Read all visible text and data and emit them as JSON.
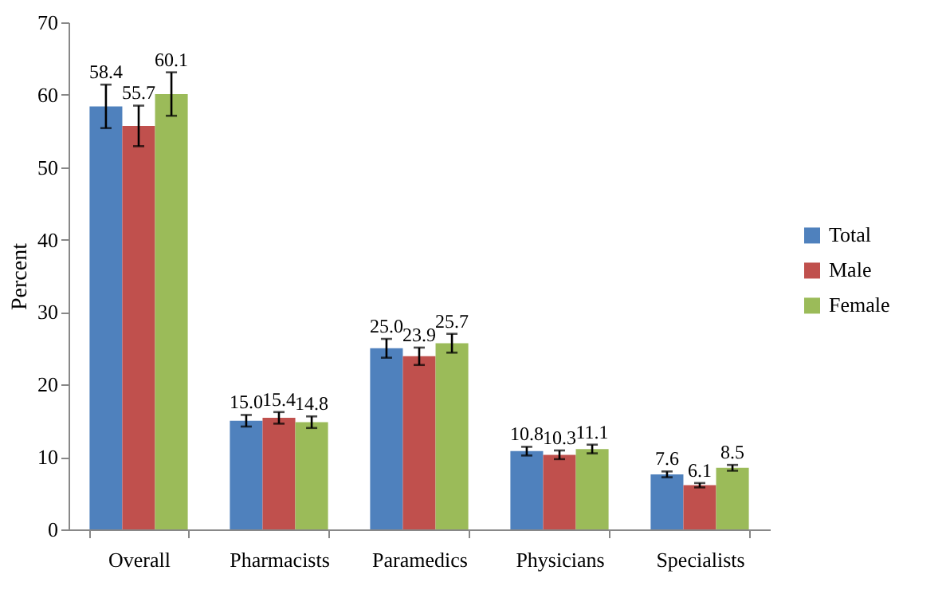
{
  "chart_data": {
    "type": "bar",
    "ylabel": "Percent",
    "categories": [
      "Overall",
      "Pharmacists",
      "Paramedics",
      "Physicians",
      "Specialists"
    ],
    "series": [
      {
        "name": "Total",
        "color": "#4f81bd",
        "values": [
          58.4,
          15.0,
          25.0,
          10.8,
          7.6
        ],
        "errors": [
          3.0,
          0.8,
          1.3,
          0.6,
          0.4
        ],
        "value_labels": [
          "58.4",
          "15.0",
          "25.0",
          "10.8",
          "7.6"
        ]
      },
      {
        "name": "Male",
        "color": "#c0504d",
        "values": [
          55.7,
          15.4,
          23.9,
          10.3,
          6.1
        ],
        "errors": [
          2.8,
          0.8,
          1.2,
          0.6,
          0.3
        ],
        "value_labels": [
          "55.7",
          "15.4",
          "23.9",
          "10.3",
          "6.1"
        ]
      },
      {
        "name": "Female",
        "color": "#9bbb59",
        "values": [
          60.1,
          14.8,
          25.7,
          11.1,
          8.5
        ],
        "errors": [
          3.0,
          0.8,
          1.3,
          0.6,
          0.4
        ],
        "value_labels": [
          "60.1",
          "14.8",
          "25.7",
          "11.1",
          "8.5"
        ]
      }
    ],
    "ylim": [
      0,
      70
    ],
    "yticks": [
      0,
      10,
      20,
      30,
      40,
      50,
      60,
      70
    ],
    "grid": false,
    "legend": "right"
  }
}
